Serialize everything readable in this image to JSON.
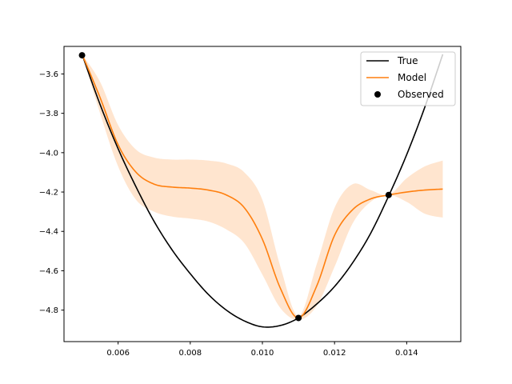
{
  "chart_data": {
    "type": "line",
    "title": "",
    "xlabel": "",
    "ylabel": "",
    "xlim": [
      0.0045,
      0.0155
    ],
    "ylim": [
      -4.96,
      -3.46
    ],
    "xticks": [
      0.006,
      0.008,
      0.01,
      0.012,
      0.014
    ],
    "xtick_labels": [
      "0.006",
      "0.008",
      "0.010",
      "0.012",
      "0.014"
    ],
    "yticks": [
      -3.6,
      -3.8,
      -4.0,
      -4.2,
      -4.4,
      -4.6,
      -4.8
    ],
    "ytick_labels": [
      "−3.6",
      "−3.8",
      "−4.0",
      "−4.2",
      "−4.4",
      "−4.6",
      "−4.8"
    ],
    "grid": false,
    "legend_position": "top-right",
    "colors": {
      "true": "#000000",
      "model": "#ff7f0e",
      "band": "#ff7f0e",
      "observed": "#000000"
    },
    "series": [
      {
        "name": "True",
        "kind": "line",
        "x": [
          0.005,
          0.0055,
          0.006,
          0.0065,
          0.007,
          0.0075,
          0.008,
          0.0085,
          0.009,
          0.0095,
          0.01,
          0.0105,
          0.011,
          0.0115,
          0.012,
          0.0125,
          0.013,
          0.0135,
          0.014,
          0.0145,
          0.015
        ],
        "y": [
          -3.5,
          -3.755,
          -3.98,
          -4.175,
          -4.35,
          -4.495,
          -4.615,
          -4.72,
          -4.8,
          -4.855,
          -4.885,
          -4.878,
          -4.84,
          -4.77,
          -4.68,
          -4.56,
          -4.41,
          -4.22,
          -4.01,
          -3.77,
          -3.5
        ]
      },
      {
        "name": "Model",
        "kind": "line",
        "x": [
          0.005,
          0.0055,
          0.006,
          0.0065,
          0.007,
          0.0075,
          0.008,
          0.0085,
          0.009,
          0.0095,
          0.01,
          0.0105,
          0.011,
          0.0115,
          0.012,
          0.0125,
          0.013,
          0.0135,
          0.014,
          0.0145,
          0.015
        ],
        "y": [
          -3.5,
          -3.72,
          -3.96,
          -4.1,
          -4.16,
          -4.175,
          -4.18,
          -4.19,
          -4.215,
          -4.28,
          -4.44,
          -4.69,
          -4.84,
          -4.68,
          -4.42,
          -4.29,
          -4.235,
          -4.215,
          -4.2,
          -4.19,
          -4.185
        ],
        "lower": [
          -3.5,
          -3.8,
          -4.07,
          -4.24,
          -4.3,
          -4.325,
          -4.335,
          -4.35,
          -4.39,
          -4.46,
          -4.62,
          -4.79,
          -4.85,
          -4.78,
          -4.58,
          -4.36,
          -4.25,
          -4.215,
          -4.25,
          -4.31,
          -4.33
        ],
        "upper": [
          -3.5,
          -3.64,
          -3.86,
          -3.985,
          -4.025,
          -4.035,
          -4.035,
          -4.04,
          -4.055,
          -4.1,
          -4.24,
          -4.58,
          -4.83,
          -4.57,
          -4.28,
          -4.16,
          -4.19,
          -4.215,
          -4.13,
          -4.07,
          -4.04
        ]
      },
      {
        "name": "Observed",
        "kind": "scatter",
        "x": [
          0.005,
          0.011,
          0.0135
        ],
        "y": [
          -3.505,
          -4.84,
          -4.215
        ]
      }
    ],
    "legend": [
      {
        "label": "True",
        "type": "line"
      },
      {
        "label": "Model",
        "type": "line"
      },
      {
        "label": "Observed",
        "type": "marker"
      }
    ]
  }
}
